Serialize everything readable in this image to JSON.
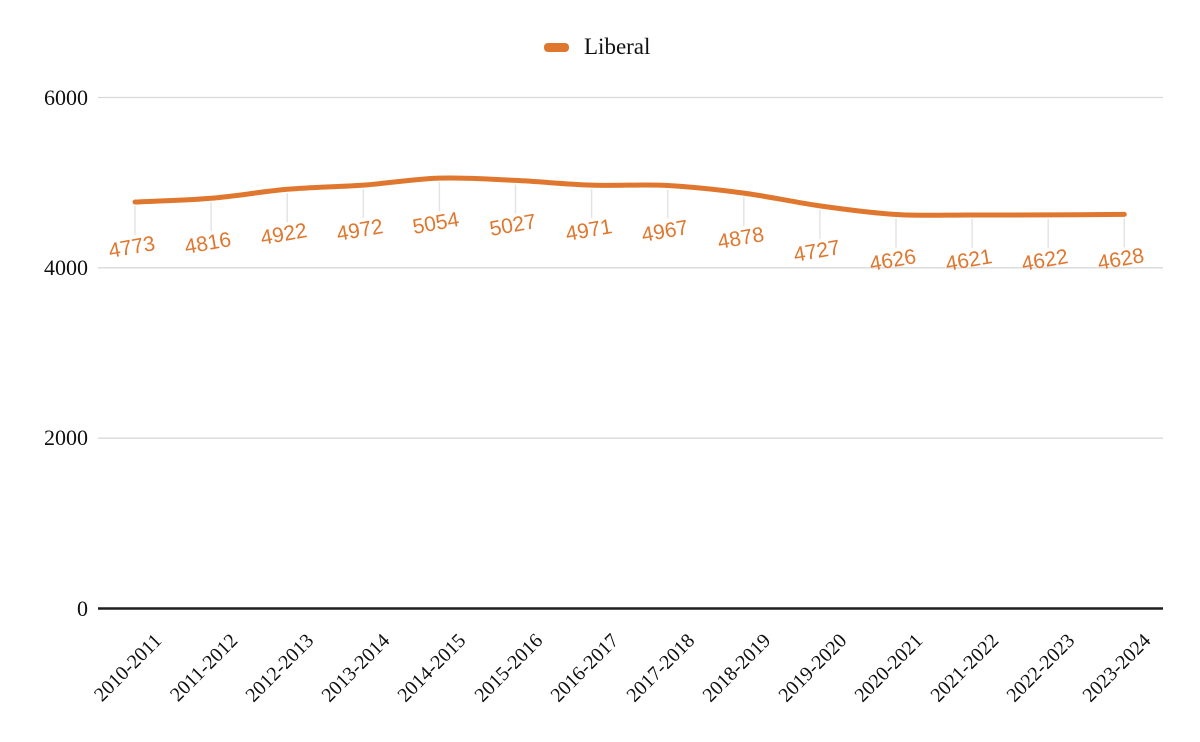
{
  "chart_data": {
    "type": "line",
    "title": "",
    "xlabel": "",
    "ylabel": "",
    "legend_position": "top",
    "grid": true,
    "x_tick_rotation_deg": 45,
    "data_label_rotation_deg": 10,
    "categories": [
      "2010-2011",
      "2011-2012",
      "2012-2013",
      "2013-2014",
      "2014-2015",
      "2015-2016",
      "2016-2017",
      "2017-2018",
      "2018-2019",
      "2019-2020",
      "2020-2021",
      "2021-2022",
      "2022-2023",
      "2023-2024"
    ],
    "series": [
      {
        "name": "Liberal",
        "color": "#e0772f",
        "values": [
          4773,
          4816,
          4922,
          4972,
          5054,
          5027,
          4971,
          4967,
          4878,
          4727,
          4626,
          4621,
          4622,
          4628
        ],
        "data_labels": [
          "4773",
          "4816",
          "4922",
          "4972",
          "5054",
          "5027",
          "4971",
          "4967",
          "4878",
          "4727",
          "4626",
          "4621",
          "4622",
          "4628"
        ]
      }
    ],
    "y_ticks": [
      0,
      2000,
      4000,
      6000
    ],
    "y_tick_labels": [
      "0",
      "2000",
      "4000",
      "6000"
    ],
    "ylim": [
      0,
      6000
    ],
    "colors": {
      "series": "#e0772f",
      "data_label": "#e0772f",
      "gridline": "#d9d9d9",
      "axis_line": "#1f1f1f",
      "leader_line": "#e4e4e4",
      "tick_text": "#0f0f0f",
      "background": "#ffffff"
    }
  }
}
